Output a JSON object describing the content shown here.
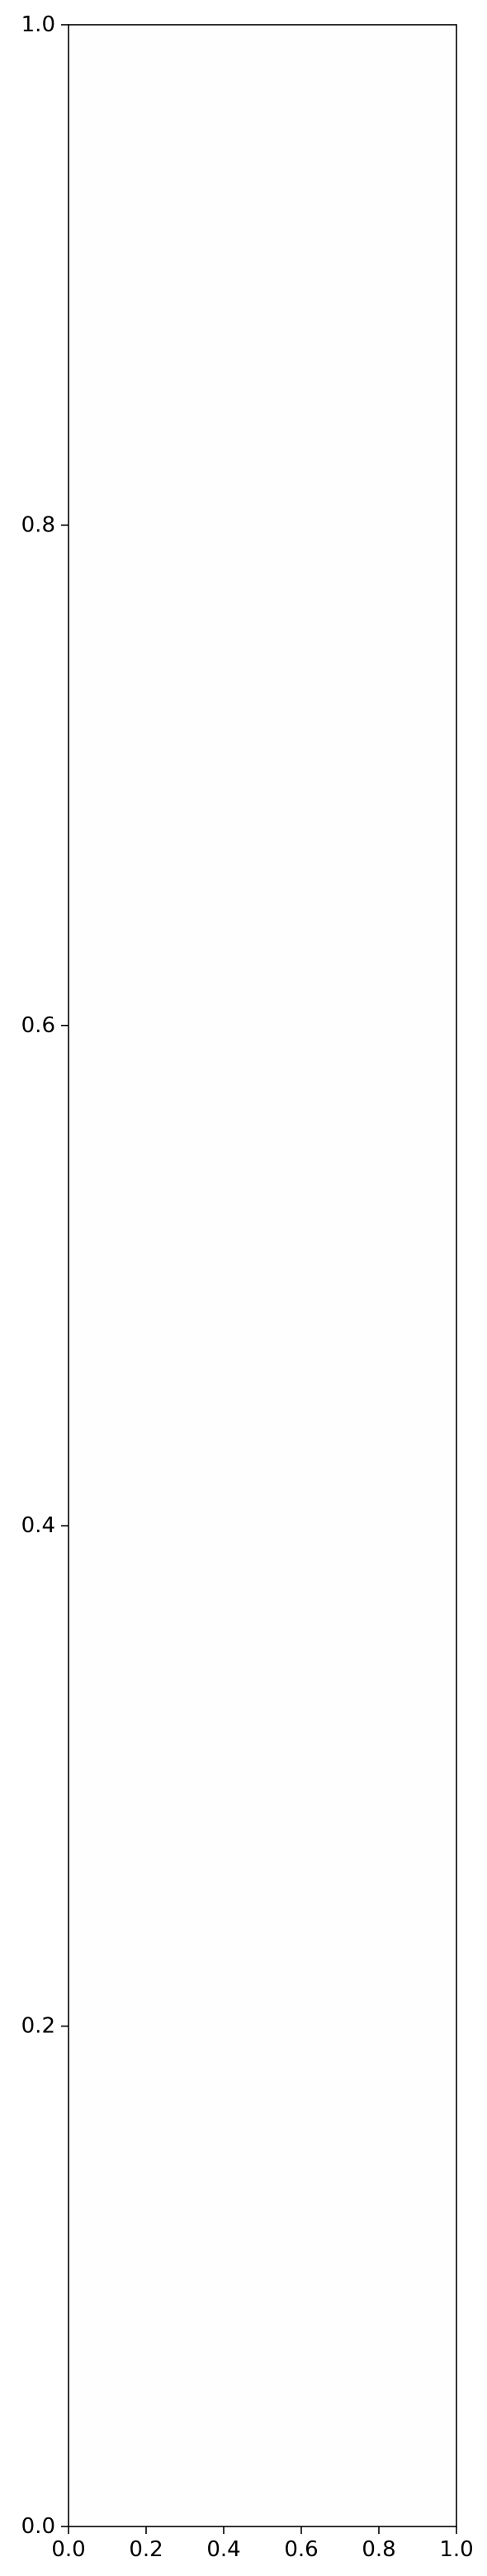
{
  "chart_data": {
    "type": "scatter",
    "title": "",
    "xlabel": "",
    "ylabel": "",
    "xlim": [
      0.0,
      1.0
    ],
    "ylim": [
      0.0,
      1.0
    ],
    "grid": false,
    "series": [],
    "x_ticks": [
      {
        "value": 0.0,
        "label": "0.0"
      },
      {
        "value": 0.2,
        "label": "0.2"
      },
      {
        "value": 0.4,
        "label": "0.4"
      },
      {
        "value": 0.6,
        "label": "0.6"
      },
      {
        "value": 0.8,
        "label": "0.8"
      },
      {
        "value": 1.0,
        "label": "1.0"
      }
    ],
    "y_ticks": [
      {
        "value": 0.0,
        "label": "0.0"
      },
      {
        "value": 0.2,
        "label": "0.2"
      },
      {
        "value": 0.4,
        "label": "0.4"
      },
      {
        "value": 0.6,
        "label": "0.6"
      },
      {
        "value": 0.8,
        "label": "0.8"
      },
      {
        "value": 1.0,
        "label": "1.0"
      }
    ],
    "colors": {
      "background": "#ffffff",
      "plot_background": "#fefefe",
      "axis": "#000000",
      "text": "#000000"
    }
  }
}
